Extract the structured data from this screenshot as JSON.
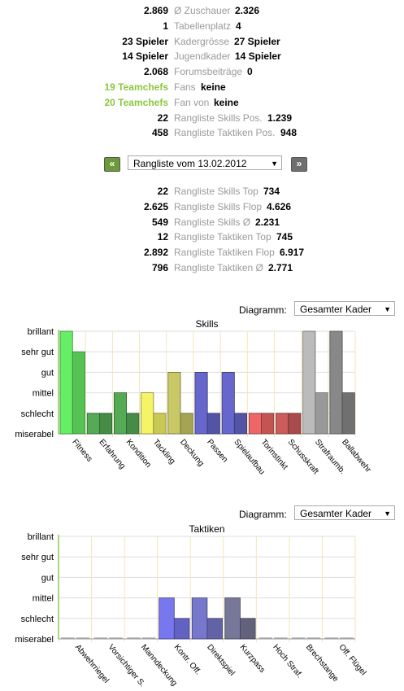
{
  "compare_top": [
    {
      "left": "2.869",
      "label": "Ø Zuschauer",
      "right": "2.326"
    },
    {
      "left": "1",
      "label": "Tabellenplatz",
      "right": "4"
    },
    {
      "left": "23 Spieler",
      "label": "Kadergrösse",
      "right": "27 Spieler"
    },
    {
      "left": "14 Spieler",
      "label": "Jugendkader",
      "right": "14 Spieler"
    },
    {
      "left": "2.068",
      "label": "Forumsbeiträge",
      "right": "0"
    },
    {
      "left": "19 Teamchefs",
      "label": "Fans",
      "right": "keine",
      "left_green": true
    },
    {
      "left": "20 Teamchefs",
      "label": "Fan von",
      "right": "keine",
      "left_green": true
    },
    {
      "left": "22",
      "label": "Rangliste Skills Pos.",
      "right": "1.239"
    },
    {
      "left": "458",
      "label": "Rangliste Taktiken Pos.",
      "right": "948"
    }
  ],
  "ranking_nav": {
    "prev_label": "«",
    "next_label": "»",
    "selected": "Rangliste vom 13.02.2012"
  },
  "compare_bottom": [
    {
      "left": "22",
      "label": "Rangliste Skills Top",
      "right": "734"
    },
    {
      "left": "2.625",
      "label": "Rangliste Skills Flop",
      "right": "4.626"
    },
    {
      "left": "549",
      "label": "Rangliste Skills Ø",
      "right": "2.231"
    },
    {
      "left": "12",
      "label": "Rangliste Taktiken Top",
      "right": "745"
    },
    {
      "left": "2.892",
      "label": "Rangliste Taktiken Flop",
      "right": "6.917"
    },
    {
      "left": "796",
      "label": "Rangliste Taktiken Ø",
      "right": "2.771"
    }
  ],
  "diagram_controls": {
    "label": "Diagramm:",
    "selected": "Gesamter Kader"
  },
  "colors": {
    "green": "#8cc63f",
    "nav_green": "#6a9a3a",
    "nav_gray": "#6f6f6f",
    "grid": "#f2e6b8"
  },
  "chart_data": [
    {
      "type": "bar",
      "title": "Skills",
      "levels": [
        "miserabel",
        "schlecht",
        "mittel",
        "gut",
        "sehr gut",
        "brillant"
      ],
      "ylim": [
        0,
        5
      ],
      "categories": [
        "Fitness",
        "Erfahrung",
        "Kondition",
        "Tackling",
        "Deckung",
        "Passen",
        "Spielaufbau",
        "Torinstinkt",
        "Schusskraft",
        "Strafraumb.",
        "Ballabwehr"
      ],
      "series": [
        {
          "values": [
            5,
            1,
            2,
            2,
            3,
            3,
            3,
            1,
            1,
            5,
            5
          ]
        },
        {
          "values": [
            4,
            1,
            1,
            1,
            1,
            1,
            1,
            1,
            1,
            2,
            2
          ]
        }
      ],
      "colors": [
        "#66ee66",
        "#55aa55",
        "#55aa55",
        "#f4f466",
        "#c8c866",
        "#6666cc",
        "#6666cc",
        "#ee6666",
        "#cc5c5c",
        "#bbbbbb",
        "#888888"
      ]
    },
    {
      "type": "bar",
      "title": "Taktiken",
      "levels": [
        "miserabel",
        "schlecht",
        "mittel",
        "gut",
        "sehr gut",
        "brillant"
      ],
      "ylim": [
        0,
        5
      ],
      "categories": [
        "Abwehrriegel",
        "Vorsichtiger S.",
        "Manndeckung",
        "Kontr. Off.",
        "Direktspiel",
        "Kurzpass",
        "Hoch Straf.",
        "Brechstange",
        "Off. Flügel"
      ],
      "series": [
        {
          "values": [
            0,
            0,
            0,
            2,
            2,
            2,
            0,
            0,
            0
          ]
        },
        {
          "values": [
            0,
            0,
            0,
            1,
            1,
            1,
            0,
            0,
            0
          ]
        }
      ],
      "colors": [
        "#aaaaaa",
        "#aaaaaa",
        "#aaaaaa",
        "#7777ee",
        "#7777cc",
        "#777799",
        "#aaaaaa",
        "#aaaaaa",
        "#aaaaaa"
      ]
    }
  ]
}
